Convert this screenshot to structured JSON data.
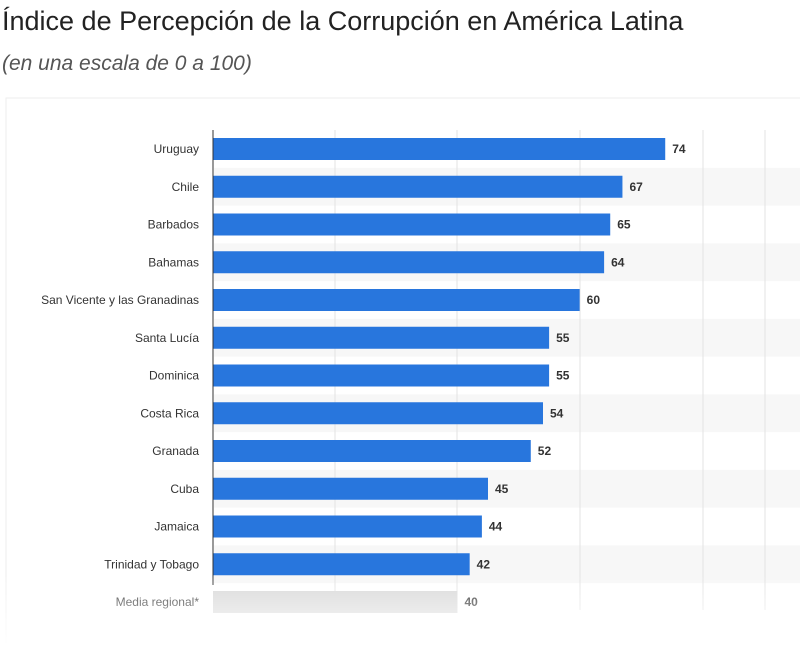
{
  "chart_data": {
    "type": "bar",
    "orientation": "horizontal",
    "title": "Índice de Percepción de la Corrupción en América Latina",
    "subtitle": "(en una escala de 0 a 100)",
    "categories": [
      "Uruguay",
      "Chile",
      "Barbados",
      "Bahamas",
      "San Vicente y las Granadinas",
      "Santa Lucía",
      "Dominica",
      "Costa Rica",
      "Granada",
      "Cuba",
      "Jamaica",
      "Trinidad y Tobago",
      "Media regional*"
    ],
    "values": [
      74,
      67,
      65,
      64,
      60,
      55,
      55,
      54,
      52,
      45,
      44,
      42,
      40
    ],
    "colors": [
      "#2876dd",
      "#2876dd",
      "#2876dd",
      "#2876dd",
      "#2876dd",
      "#2876dd",
      "#2876dd",
      "#2876dd",
      "#2876dd",
      "#2876dd",
      "#2876dd",
      "#2876dd",
      "#d9d9d9"
    ],
    "xlim": [
      0,
      90
    ]
  }
}
